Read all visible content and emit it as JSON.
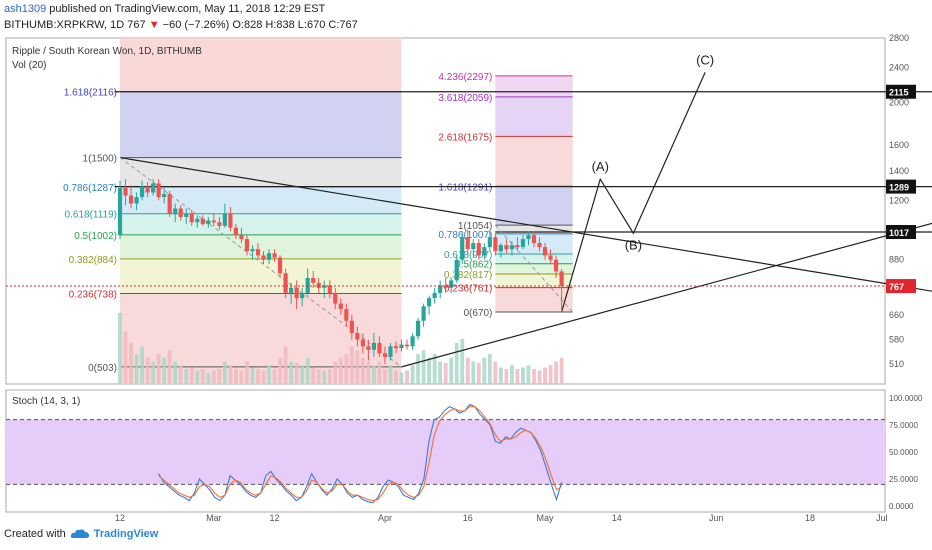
{
  "header": {
    "author": "ash1309",
    "published": "published on TradingView.com, May 11, 2018 12:29 EST",
    "ticker": "BITHUMB:XRPKRW, 1D",
    "last": "767",
    "change": "−60 (−7.26%)",
    "ohlc": "O:828 H:838 L:670 C:767"
  },
  "chart_data": {
    "type": "candlestick",
    "title": "Ripple / South Korean Won, 1D, BITHUMB",
    "volume_label": "Vol (20)",
    "y_axis": {
      "ticks": [
        510,
        580,
        660,
        760,
        880,
        1000,
        1200,
        1400,
        1600,
        2000,
        2400,
        2800
      ],
      "scale": "log",
      "range": [
        460,
        2800
      ]
    },
    "x_axis": {
      "ticks": [
        {
          "label": "12",
          "day": 12
        },
        {
          "label": "Mar",
          "day": 29
        },
        {
          "label": "12",
          "day": 40
        },
        {
          "label": "Apr",
          "day": 60
        },
        {
          "label": "16",
          "day": 75
        },
        {
          "label": "May",
          "day": 89
        },
        {
          "label": "14",
          "day": 102
        },
        {
          "label": "Jun",
          "day": 120
        },
        {
          "label": "18",
          "day": 137
        },
        {
          "label": "Jul",
          "day": 150
        }
      ],
      "start": "2018-01-31"
    },
    "price_badges": [
      {
        "value": "2115",
        "price": 2115,
        "style": "dark"
      },
      {
        "value": "1289",
        "price": 1289,
        "style": "dark"
      },
      {
        "value": "1017",
        "price": 1017,
        "style": "dark"
      },
      {
        "value": "767",
        "price": 767,
        "style": "red"
      }
    ],
    "fib_left": {
      "start_day": 12,
      "end_day": 63,
      "levels": [
        {
          "label": "1.618(2116)",
          "price": 2116,
          "color": "#4343c8",
          "fill": "#c9c9f0"
        },
        {
          "label": "1(1500)",
          "price": 1500,
          "color": "#555555",
          "fill": "#e2e2e2"
        },
        {
          "label": "0.786(1287)",
          "price": 1287,
          "color": "#2a80c0",
          "fill": "#cde6f6"
        },
        {
          "label": "0.618(1119)",
          "price": 1119,
          "color": "#2aa0a0",
          "fill": "#cff0ea"
        },
        {
          "label": "0.5(1002)",
          "price": 1002,
          "color": "#27a04a",
          "fill": "#d9f2d4"
        },
        {
          "label": "0.382(884)",
          "price": 884,
          "color": "#8ca020",
          "fill": "#eef3cf"
        },
        {
          "label": "0.236(738)",
          "price": 738,
          "color": "#c83232",
          "fill": "#f8d4d4"
        },
        {
          "label": "0(503)",
          "price": 503,
          "color": "#555555",
          "fill": "#f8d4d4"
        }
      ],
      "red_fill_top": 2800
    },
    "fib_right": {
      "start_day": 80,
      "end_day": 94,
      "levels": [
        {
          "label": "4.236(2297)",
          "price": 2297,
          "color": "#c832a0",
          "fill": "#ecd0ee"
        },
        {
          "label": "3.618(2059)",
          "price": 2059,
          "color": "#a032c8",
          "fill": "#e0cdf5"
        },
        {
          "label": "2.618(1675)",
          "price": 1675,
          "color": "#c83232",
          "fill": "#f8d4d4"
        },
        {
          "label": "1.618(1291)",
          "price": 1291,
          "color": "#4343c8",
          "fill": "#c9c9f0"
        },
        {
          "label": "1(1054)",
          "price": 1054,
          "color": "#555555",
          "fill": "#e2e2e2"
        },
        {
          "label": "0.786(1007)",
          "price": 1007,
          "color": "#2a80c0",
          "fill": "#cde6f6"
        },
        {
          "label": "0.618(907)",
          "price": 907,
          "color": "#2aa0a0",
          "fill": "#cff0ea"
        },
        {
          "label": "0.5(862)",
          "price": 862,
          "color": "#27a04a",
          "fill": "#d9f2d4"
        },
        {
          "label": "0.382(817)",
          "price": 817,
          "color": "#8ca020",
          "fill": "#eef3cf"
        },
        {
          "label": "0.236(761)",
          "price": 761,
          "color": "#c83232",
          "fill": "#f8d4d4"
        },
        {
          "label": "0(670)",
          "price": 670,
          "color": "#555555",
          "fill": "#f8d4d4"
        }
      ]
    },
    "candles": [
      {
        "o": 1000,
        "h": 1330,
        "l": 980,
        "c": 1280
      },
      {
        "o": 1280,
        "h": 1340,
        "l": 1170,
        "c": 1230
      },
      {
        "o": 1230,
        "h": 1300,
        "l": 1150,
        "c": 1180
      },
      {
        "o": 1180,
        "h": 1250,
        "l": 1140,
        "c": 1220
      },
      {
        "o": 1220,
        "h": 1330,
        "l": 1200,
        "c": 1290
      },
      {
        "o": 1290,
        "h": 1320,
        "l": 1220,
        "c": 1250
      },
      {
        "o": 1250,
        "h": 1340,
        "l": 1230,
        "c": 1310
      },
      {
        "o": 1310,
        "h": 1340,
        "l": 1200,
        "c": 1220
      },
      {
        "o": 1220,
        "h": 1280,
        "l": 1180,
        "c": 1240
      },
      {
        "o": 1240,
        "h": 1260,
        "l": 1100,
        "c": 1120
      },
      {
        "o": 1120,
        "h": 1180,
        "l": 1070,
        "c": 1150
      },
      {
        "o": 1150,
        "h": 1170,
        "l": 1080,
        "c": 1100
      },
      {
        "o": 1100,
        "h": 1150,
        "l": 1060,
        "c": 1120
      },
      {
        "o": 1120,
        "h": 1140,
        "l": 1050,
        "c": 1070
      },
      {
        "o": 1070,
        "h": 1110,
        "l": 1040,
        "c": 1090
      },
      {
        "o": 1090,
        "h": 1110,
        "l": 1050,
        "c": 1060
      },
      {
        "o": 1060,
        "h": 1100,
        "l": 1040,
        "c": 1080
      },
      {
        "o": 1080,
        "h": 1120,
        "l": 1050,
        "c": 1070
      },
      {
        "o": 1070,
        "h": 1100,
        "l": 1030,
        "c": 1050
      },
      {
        "o": 1050,
        "h": 1180,
        "l": 1040,
        "c": 1120
      },
      {
        "o": 1120,
        "h": 1160,
        "l": 1020,
        "c": 1040
      },
      {
        "o": 1040,
        "h": 1060,
        "l": 980,
        "c": 1000
      },
      {
        "o": 1000,
        "h": 1040,
        "l": 960,
        "c": 980
      },
      {
        "o": 980,
        "h": 1000,
        "l": 900,
        "c": 920
      },
      {
        "o": 920,
        "h": 950,
        "l": 880,
        "c": 930
      },
      {
        "o": 930,
        "h": 960,
        "l": 880,
        "c": 900
      },
      {
        "o": 900,
        "h": 920,
        "l": 860,
        "c": 880
      },
      {
        "o": 880,
        "h": 930,
        "l": 860,
        "c": 910
      },
      {
        "o": 910,
        "h": 930,
        "l": 870,
        "c": 890
      },
      {
        "o": 890,
        "h": 900,
        "l": 800,
        "c": 820
      },
      {
        "o": 820,
        "h": 840,
        "l": 720,
        "c": 740
      },
      {
        "o": 740,
        "h": 780,
        "l": 700,
        "c": 760
      },
      {
        "o": 760,
        "h": 790,
        "l": 680,
        "c": 720
      },
      {
        "o": 720,
        "h": 760,
        "l": 690,
        "c": 740
      },
      {
        "o": 740,
        "h": 840,
        "l": 730,
        "c": 800
      },
      {
        "o": 800,
        "h": 830,
        "l": 760,
        "c": 780
      },
      {
        "o": 780,
        "h": 800,
        "l": 740,
        "c": 760
      },
      {
        "o": 760,
        "h": 790,
        "l": 720,
        "c": 770
      },
      {
        "o": 770,
        "h": 790,
        "l": 720,
        "c": 740
      },
      {
        "o": 740,
        "h": 760,
        "l": 680,
        "c": 700
      },
      {
        "o": 700,
        "h": 720,
        "l": 660,
        "c": 680
      },
      {
        "o": 680,
        "h": 700,
        "l": 620,
        "c": 640
      },
      {
        "o": 640,
        "h": 660,
        "l": 580,
        "c": 600
      },
      {
        "o": 600,
        "h": 620,
        "l": 560,
        "c": 580
      },
      {
        "o": 580,
        "h": 600,
        "l": 540,
        "c": 560
      },
      {
        "o": 560,
        "h": 580,
        "l": 520,
        "c": 550
      },
      {
        "o": 550,
        "h": 600,
        "l": 530,
        "c": 570
      },
      {
        "o": 570,
        "h": 590,
        "l": 530,
        "c": 540
      },
      {
        "o": 540,
        "h": 560,
        "l": 510,
        "c": 530
      },
      {
        "o": 530,
        "h": 570,
        "l": 520,
        "c": 560
      },
      {
        "o": 560,
        "h": 575,
        "l": 540,
        "c": 555
      },
      {
        "o": 555,
        "h": 580,
        "l": 545,
        "c": 565
      },
      {
        "o": 565,
        "h": 580,
        "l": 550,
        "c": 560
      },
      {
        "o": 560,
        "h": 600,
        "l": 550,
        "c": 590
      },
      {
        "o": 590,
        "h": 650,
        "l": 580,
        "c": 640
      },
      {
        "o": 640,
        "h": 700,
        "l": 620,
        "c": 690
      },
      {
        "o": 690,
        "h": 730,
        "l": 660,
        "c": 720
      },
      {
        "o": 720,
        "h": 760,
        "l": 700,
        "c": 740
      },
      {
        "o": 740,
        "h": 790,
        "l": 720,
        "c": 770
      },
      {
        "o": 770,
        "h": 800,
        "l": 740,
        "c": 760
      },
      {
        "o": 760,
        "h": 800,
        "l": 740,
        "c": 790
      },
      {
        "o": 790,
        "h": 900,
        "l": 780,
        "c": 880
      },
      {
        "o": 880,
        "h": 1020,
        "l": 860,
        "c": 990
      },
      {
        "o": 990,
        "h": 1030,
        "l": 900,
        "c": 930
      },
      {
        "o": 930,
        "h": 980,
        "l": 890,
        "c": 960
      },
      {
        "o": 960,
        "h": 980,
        "l": 880,
        "c": 900
      },
      {
        "o": 900,
        "h": 960,
        "l": 880,
        "c": 940
      },
      {
        "o": 940,
        "h": 1020,
        "l": 920,
        "c": 990
      },
      {
        "o": 990,
        "h": 1010,
        "l": 900,
        "c": 920
      },
      {
        "o": 920,
        "h": 960,
        "l": 890,
        "c": 950
      },
      {
        "o": 950,
        "h": 980,
        "l": 910,
        "c": 930
      },
      {
        "o": 930,
        "h": 970,
        "l": 900,
        "c": 950
      },
      {
        "o": 950,
        "h": 990,
        "l": 920,
        "c": 940
      },
      {
        "o": 940,
        "h": 1000,
        "l": 930,
        "c": 980
      },
      {
        "o": 980,
        "h": 1020,
        "l": 950,
        "c": 1000
      },
      {
        "o": 1000,
        "h": 1020,
        "l": 940,
        "c": 960
      },
      {
        "o": 960,
        "h": 990,
        "l": 920,
        "c": 940
      },
      {
        "o": 940,
        "h": 960,
        "l": 880,
        "c": 900
      },
      {
        "o": 900,
        "h": 930,
        "l": 860,
        "c": 880
      },
      {
        "o": 880,
        "h": 900,
        "l": 800,
        "c": 828
      },
      {
        "o": 828,
        "h": 838,
        "l": 670,
        "c": 767
      }
    ],
    "volume_levels": [
      0.95,
      0.7,
      0.55,
      0.4,
      0.5,
      0.35,
      0.3,
      0.4,
      0.35,
      0.45,
      0.3,
      0.25,
      0.2,
      0.22,
      0.18,
      0.2,
      0.15,
      0.18,
      0.2,
      0.3,
      0.25,
      0.2,
      0.18,
      0.3,
      0.22,
      0.2,
      0.18,
      0.25,
      0.2,
      0.35,
      0.5,
      0.3,
      0.28,
      0.25,
      0.35,
      0.22,
      0.2,
      0.18,
      0.2,
      0.3,
      0.35,
      0.4,
      0.5,
      0.45,
      0.35,
      0.3,
      0.25,
      0.3,
      0.2,
      0.25,
      0.18,
      0.15,
      0.18,
      0.25,
      0.4,
      0.45,
      0.35,
      0.4,
      0.3,
      0.28,
      0.35,
      0.55,
      0.6,
      0.35,
      0.3,
      0.28,
      0.35,
      0.4,
      0.3,
      0.22,
      0.2,
      0.25,
      0.2,
      0.22,
      0.25,
      0.2,
      0.18,
      0.22,
      0.25,
      0.3,
      0.35
    ],
    "elliott": [
      {
        "label": "(A)",
        "day": 99,
        "price": 1340
      },
      {
        "label": "(B)",
        "day": 105,
        "price": 1010
      },
      {
        "label": "(C)",
        "day": 118,
        "price": 2340
      }
    ],
    "trendlines": [
      {
        "from_day": 12,
        "from_price": 1500,
        "to_day": 161,
        "to_price": 740
      },
      {
        "from_day": 63,
        "from_price": 503,
        "to_day": 161,
        "to_price": 1080
      },
      {
        "from_day": 11,
        "from_price": 1289,
        "to_day": 161,
        "to_price": 1289
      },
      {
        "from_day": 11,
        "from_price": 2115,
        "to_day": 161,
        "to_price": 2115
      },
      {
        "from_day": 80,
        "from_price": 1017,
        "to_day": 161,
        "to_price": 1017
      }
    ],
    "stochastic": {
      "label": "Stoch (14, 3, 1)",
      "ticks": [
        "100.0000",
        "75.0000",
        "50.0000",
        "25.0000",
        "0.0000"
      ],
      "bands": [
        80,
        20
      ],
      "k": [
        30,
        22,
        18,
        14,
        10,
        8,
        5,
        12,
        25,
        20,
        15,
        8,
        5,
        10,
        28,
        24,
        20,
        14,
        10,
        8,
        12,
        28,
        32,
        25,
        20,
        14,
        10,
        5,
        8,
        18,
        30,
        22,
        15,
        10,
        16,
        25,
        20,
        12,
        8,
        10,
        6,
        4,
        3,
        8,
        18,
        24,
        22,
        18,
        10,
        8,
        6,
        12,
        25,
        60,
        80,
        82,
        88,
        92,
        90,
        86,
        88,
        94,
        92,
        85,
        80,
        75,
        60,
        58,
        64,
        62,
        68,
        72,
        70,
        68,
        60,
        50,
        35,
        20,
        6,
        22
      ],
      "d": [
        28,
        24,
        20,
        16,
        12,
        10,
        8,
        10,
        18,
        20,
        18,
        12,
        8,
        10,
        20,
        24,
        22,
        16,
        12,
        10,
        12,
        20,
        28,
        26,
        22,
        16,
        12,
        8,
        8,
        14,
        24,
        22,
        16,
        12,
        14,
        20,
        20,
        14,
        10,
        10,
        8,
        6,
        5,
        6,
        12,
        20,
        22,
        20,
        14,
        10,
        8,
        10,
        18,
        40,
        65,
        78,
        84,
        88,
        90,
        88,
        88,
        92,
        92,
        88,
        82,
        76,
        66,
        60,
        62,
        62,
        64,
        68,
        70,
        68,
        62,
        54,
        42,
        28,
        15,
        18
      ]
    }
  },
  "footer": {
    "created_with": "Created with",
    "brand": "TradingView"
  }
}
